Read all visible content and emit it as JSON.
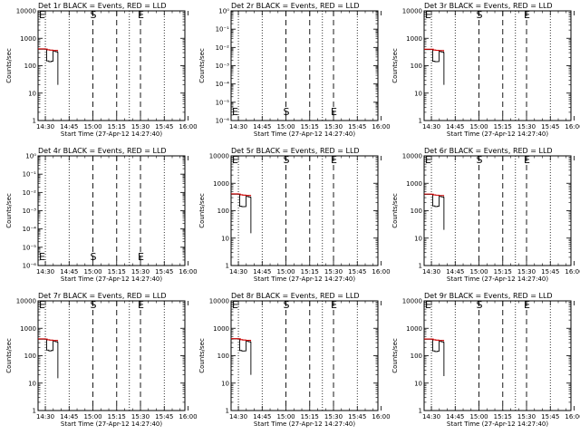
{
  "figure": {
    "xlabel": "Start Time (27-Apr-12 14:27:40)",
    "ylabel": "Counts/sec",
    "x_ticks": [
      "14:30",
      "14:45",
      "15:00",
      "15:15",
      "15:30",
      "15:45",
      "16:00"
    ]
  },
  "colors": {
    "events": "#000000",
    "lld": "#cc0000"
  },
  "chart_data": [
    {
      "type": "line",
      "title": "Det 1r BLACK = Events, RED = LLD",
      "scale": "log",
      "ylim": [
        1,
        10000
      ],
      "y_ticks": [
        "1",
        "10",
        "100",
        "1000",
        "10000"
      ],
      "x_range_min": [
        -2.3,
        90.3
      ],
      "dotted_lines_min": [
        2.3,
        17.3,
        55.3,
        77.3
      ],
      "dashed_lines_min": [
        32.3,
        47.3,
        62.3
      ],
      "markers": [
        {
          "text": "S",
          "x_min": 32.3
        },
        {
          "text": "E",
          "x_min": 62.3
        }
      ],
      "series": [
        {
          "name": "Events",
          "points": [
            [
              -2.3,
              400
            ],
            [
              2.3,
              400
            ],
            [
              3.1,
              150
            ],
            [
              4.5,
              140
            ],
            [
              6.0,
              145
            ],
            [
              7.1,
              350
            ],
            [
              8.0,
              330
            ],
            [
              9.0,
              320
            ],
            [
              10.0,
              310
            ],
            [
              10.2,
              20
            ]
          ]
        },
        {
          "name": "LLD",
          "points": [
            [
              -2.3,
              410
            ],
            [
              2.3,
              405
            ],
            [
              3.5,
              380
            ],
            [
              5.0,
              370
            ],
            [
              7.0,
              360
            ],
            [
              10.0,
              340
            ]
          ]
        }
      ]
    },
    {
      "type": "line",
      "title": "Det 2r BLACK = Events, RED = LLD",
      "scale": "log",
      "ylim": [
        1e-06,
        1
      ],
      "y_ticks": [
        "10⁻⁶",
        "10⁻⁵",
        "10⁻⁴",
        "10⁻³",
        "10⁻²",
        "10⁻¹",
        "10⁰"
      ],
      "x_range_min": [
        -2.3,
        90.3
      ],
      "dotted_lines_min": [
        2.3,
        17.3,
        55.3,
        77.3
      ],
      "dashed_lines_min": [
        32.3,
        47.3,
        62.3
      ],
      "markers": [
        {
          "text": "S",
          "x_min": 32.3
        },
        {
          "text": "E",
          "x_min": 62.3
        }
      ],
      "series": []
    },
    {
      "type": "line",
      "title": "Det 3r BLACK = Events, RED = LLD",
      "scale": "log",
      "ylim": [
        1,
        10000
      ],
      "y_ticks": [
        "1",
        "10",
        "100",
        "1000",
        "10000"
      ],
      "x_range_min": [
        -2.3,
        90.3
      ],
      "dotted_lines_min": [
        2.3,
        17.3,
        55.3,
        77.3
      ],
      "dashed_lines_min": [
        32.3,
        47.3,
        62.3
      ],
      "markers": [
        {
          "text": "S",
          "x_min": 32.3
        },
        {
          "text": "E",
          "x_min": 62.3
        }
      ],
      "series": [
        {
          "name": "Events",
          "points": [
            [
              -2.3,
              390
            ],
            [
              2.3,
              390
            ],
            [
              3.1,
              145
            ],
            [
              4.5,
              140
            ],
            [
              6.0,
              142
            ],
            [
              7.1,
              340
            ],
            [
              8.0,
              320
            ],
            [
              9.0,
              315
            ],
            [
              10.0,
              300
            ],
            [
              10.2,
              20
            ]
          ]
        },
        {
          "name": "LLD",
          "points": [
            [
              -2.3,
              400
            ],
            [
              2.3,
              400
            ],
            [
              3.5,
              375
            ],
            [
              5.0,
              365
            ],
            [
              7.0,
              355
            ],
            [
              10.0,
              335
            ]
          ]
        }
      ]
    },
    {
      "type": "line",
      "title": "Det 4r BLACK = Events, RED = LLD",
      "scale": "log",
      "ylim": [
        1e-06,
        1
      ],
      "y_ticks": [
        "10⁻⁶",
        "10⁻⁵",
        "10⁻⁴",
        "10⁻³",
        "10⁻²",
        "10⁻¹",
        "10⁰"
      ],
      "x_range_min": [
        -2.3,
        90.3
      ],
      "dotted_lines_min": [
        2.3,
        17.3,
        55.3,
        77.3
      ],
      "dashed_lines_min": [
        32.3,
        47.3,
        62.3
      ],
      "markers": [
        {
          "text": "S",
          "x_min": 32.3
        },
        {
          "text": "E",
          "x_min": 62.3
        }
      ],
      "series": []
    },
    {
      "type": "line",
      "title": "Det 5r BLACK = Events, RED = LLD",
      "scale": "log",
      "ylim": [
        1,
        10000
      ],
      "y_ticks": [
        "1",
        "10",
        "100",
        "1000",
        "10000"
      ],
      "x_range_min": [
        -2.3,
        90.3
      ],
      "dotted_lines_min": [
        2.3,
        17.3,
        55.3,
        77.3
      ],
      "dashed_lines_min": [
        32.3,
        47.3,
        62.3
      ],
      "markers": [
        {
          "text": "S",
          "x_min": 32.3
        },
        {
          "text": "E",
          "x_min": 62.3
        }
      ],
      "series": [
        {
          "name": "Events",
          "points": [
            [
              -2.3,
              400
            ],
            [
              2.3,
              400
            ],
            [
              3.1,
              145
            ],
            [
              4.5,
              140
            ],
            [
              6.0,
              142
            ],
            [
              7.1,
              345
            ],
            [
              8.0,
              325
            ],
            [
              9.0,
              315
            ],
            [
              10.0,
              305
            ],
            [
              10.2,
              15
            ]
          ]
        },
        {
          "name": "LLD",
          "points": [
            [
              -2.3,
              410
            ],
            [
              2.3,
              405
            ],
            [
              3.5,
              380
            ],
            [
              5.0,
              370
            ],
            [
              7.0,
              360
            ],
            [
              10.0,
              340
            ]
          ]
        }
      ]
    },
    {
      "type": "line",
      "title": "Det 6r BLACK = Events, RED = LLD",
      "scale": "log",
      "ylim": [
        1,
        10000
      ],
      "y_ticks": [
        "1",
        "10",
        "100",
        "1000",
        "10000"
      ],
      "x_range_min": [
        -2.3,
        90.3
      ],
      "dotted_lines_min": [
        2.3,
        17.3,
        55.3,
        77.3
      ],
      "dashed_lines_min": [
        32.3,
        47.3,
        62.3
      ],
      "markers": [
        {
          "text": "S",
          "x_min": 32.3
        },
        {
          "text": "E",
          "x_min": 62.3
        }
      ],
      "series": [
        {
          "name": "Events",
          "points": [
            [
              -2.3,
              395
            ],
            [
              2.3,
              395
            ],
            [
              3.1,
              150
            ],
            [
              4.5,
              142
            ],
            [
              6.0,
              145
            ],
            [
              7.1,
              345
            ],
            [
              8.0,
              325
            ],
            [
              9.0,
              318
            ],
            [
              10.0,
              305
            ],
            [
              10.2,
              20
            ]
          ]
        },
        {
          "name": "LLD",
          "points": [
            [
              -2.3,
              405
            ],
            [
              2.3,
              400
            ],
            [
              3.5,
              378
            ],
            [
              5.0,
              368
            ],
            [
              7.0,
              358
            ],
            [
              10.0,
              338
            ]
          ]
        }
      ]
    },
    {
      "type": "line",
      "title": "Det 7r BLACK = Events, RED = LLD",
      "scale": "log",
      "ylim": [
        1,
        10000
      ],
      "y_ticks": [
        "1",
        "10",
        "100",
        "1000",
        "10000"
      ],
      "x_range_min": [
        -2.3,
        90.3
      ],
      "dotted_lines_min": [
        2.3,
        17.3,
        55.3,
        77.3
      ],
      "dashed_lines_min": [
        32.3,
        47.3,
        62.3
      ],
      "markers": [
        {
          "text": "S",
          "x_min": 32.3
        },
        {
          "text": "E",
          "x_min": 62.3
        }
      ],
      "series": [
        {
          "name": "Events",
          "points": [
            [
              -2.3,
              400
            ],
            [
              2.3,
              400
            ],
            [
              3.1,
              160
            ],
            [
              4.5,
              150
            ],
            [
              6.0,
              155
            ],
            [
              7.1,
              350
            ],
            [
              8.0,
              330
            ],
            [
              9.0,
              320
            ],
            [
              10.0,
              310
            ],
            [
              10.2,
              15
            ]
          ]
        },
        {
          "name": "LLD",
          "points": [
            [
              -2.3,
              410
            ],
            [
              2.3,
              405
            ],
            [
              3.5,
              380
            ],
            [
              5.0,
              370
            ],
            [
              7.0,
              360
            ],
            [
              10.0,
              340
            ]
          ]
        }
      ]
    },
    {
      "type": "line",
      "title": "Det 8r BLACK = Events, RED = LLD",
      "scale": "log",
      "ylim": [
        1,
        10000
      ],
      "y_ticks": [
        "1",
        "10",
        "100",
        "1000",
        "10000"
      ],
      "x_range_min": [
        -2.3,
        90.3
      ],
      "dotted_lines_min": [
        2.3,
        17.3,
        55.3,
        77.3
      ],
      "dashed_lines_min": [
        32.3,
        47.3,
        62.3
      ],
      "markers": [
        {
          "text": "S",
          "x_min": 32.3
        },
        {
          "text": "E",
          "x_min": 62.3
        }
      ],
      "series": [
        {
          "name": "Events",
          "points": [
            [
              -2.3,
              410
            ],
            [
              2.3,
              410
            ],
            [
              3.1,
              155
            ],
            [
              4.5,
              148
            ],
            [
              6.0,
              150
            ],
            [
              7.1,
              350
            ],
            [
              8.0,
              330
            ],
            [
              9.0,
              322
            ],
            [
              10.0,
              312
            ],
            [
              10.2,
              20
            ]
          ]
        },
        {
          "name": "LLD",
          "points": [
            [
              -2.3,
              420
            ],
            [
              2.3,
              415
            ],
            [
              3.5,
              385
            ],
            [
              5.0,
              375
            ],
            [
              7.0,
              362
            ],
            [
              10.0,
              342
            ]
          ]
        }
      ]
    },
    {
      "type": "line",
      "title": "Det 9r BLACK = Events, RED = LLD",
      "scale": "log",
      "ylim": [
        1,
        10000
      ],
      "y_ticks": [
        "1",
        "10",
        "100",
        "1000",
        "10000"
      ],
      "x_range_min": [
        -2.3,
        90.3
      ],
      "dotted_lines_min": [
        2.3,
        17.3,
        55.3,
        77.3
      ],
      "dashed_lines_min": [
        32.3,
        47.3,
        62.3
      ],
      "markers": [
        {
          "text": "S",
          "x_min": 32.3
        },
        {
          "text": "E",
          "x_min": 62.3
        }
      ],
      "series": [
        {
          "name": "Events",
          "points": [
            [
              -2.3,
              400
            ],
            [
              2.3,
              400
            ],
            [
              3.1,
              150
            ],
            [
              4.5,
              142
            ],
            [
              6.0,
              146
            ],
            [
              7.1,
              345
            ],
            [
              8.0,
              326
            ],
            [
              9.0,
              318
            ],
            [
              10.0,
              306
            ],
            [
              10.2,
              18
            ]
          ]
        },
        {
          "name": "LLD",
          "points": [
            [
              -2.3,
              408
            ],
            [
              2.3,
              404
            ],
            [
              3.5,
              380
            ],
            [
              5.0,
              370
            ],
            [
              7.0,
              360
            ],
            [
              10.0,
              340
            ]
          ]
        }
      ]
    }
  ]
}
